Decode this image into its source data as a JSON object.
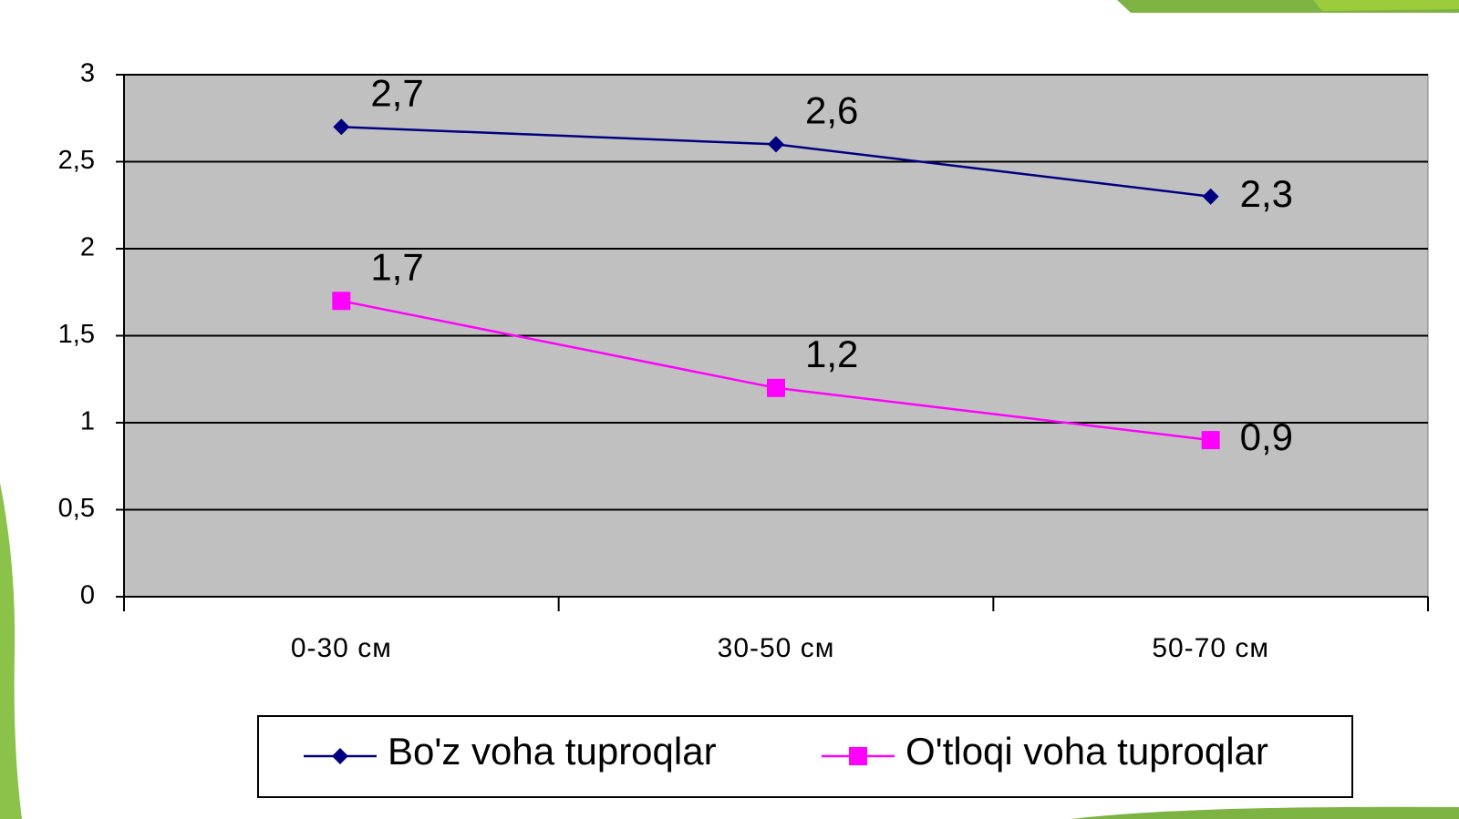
{
  "chart_data": {
    "type": "line",
    "categories": [
      "0-30 см",
      "30-50 см",
      "50-70 см"
    ],
    "series": [
      {
        "name": "Bo'z voha tuproqlar",
        "color": "#000080",
        "values": [
          2.7,
          2.6,
          2.3
        ],
        "value_labels": [
          "2,7",
          "2,6",
          "2,3"
        ]
      },
      {
        "name": "O'tloqi voha tuproqlar",
        "color": "#ff00ff",
        "values": [
          1.7,
          1.2,
          0.9
        ],
        "value_labels": [
          "1,7",
          "1,2",
          "0,9"
        ]
      }
    ],
    "ylim": [
      0,
      3
    ],
    "yticks": [
      0,
      {
        "value": 0.5,
        "label": "0,5"
      },
      1,
      {
        "value": 1.5,
        "label": "1,5"
      },
      2,
      {
        "value": 2.5,
        "label": "2,5"
      },
      3
    ],
    "grid": true,
    "legend": "bottom"
  }
}
